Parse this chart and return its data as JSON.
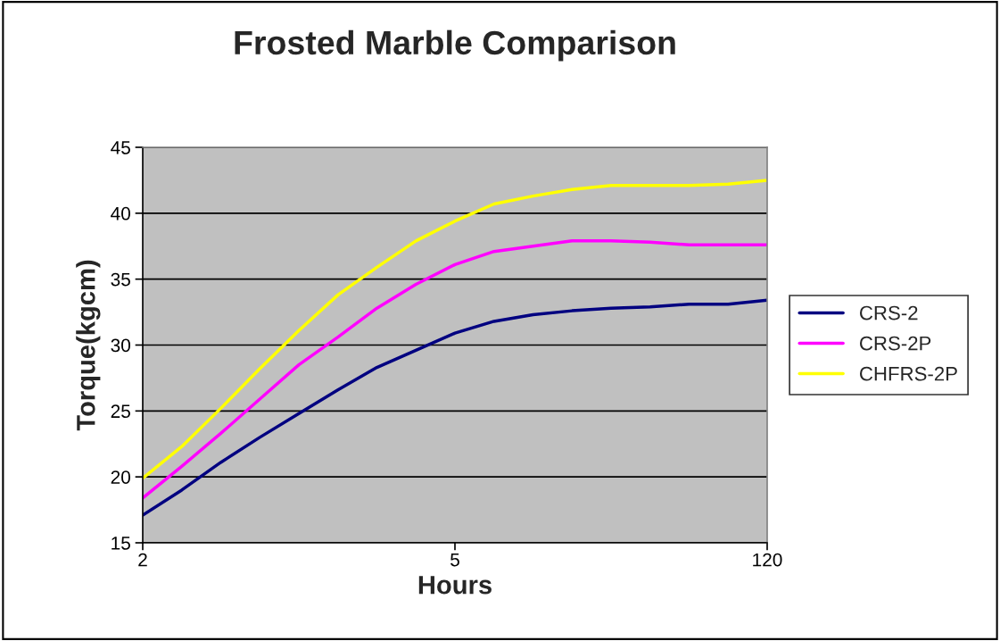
{
  "chart_data": {
    "type": "line",
    "title": "Frosted Marble Comparison",
    "xlabel": "Hours",
    "ylabel": "Torque(kgcm)",
    "categories": [
      "2",
      null,
      null,
      null,
      null,
      null,
      null,
      null,
      "5",
      null,
      null,
      null,
      null,
      null,
      null,
      null,
      "120"
    ],
    "series": [
      {
        "name": "CRS-2",
        "color": "#000080",
        "values": [
          17.1,
          19.0,
          21.1,
          23.0,
          24.8,
          26.6,
          28.3,
          29.6,
          30.9,
          31.8,
          32.3,
          32.6,
          32.8,
          32.9,
          33.1,
          33.1,
          33.4
        ]
      },
      {
        "name": "CRS-2P",
        "color": "#ff00ff",
        "values": [
          18.4,
          20.8,
          23.3,
          25.9,
          28.5,
          30.6,
          32.8,
          34.6,
          36.1,
          37.1,
          37.5,
          37.9,
          37.9,
          37.8,
          37.6,
          37.6,
          37.6
        ]
      },
      {
        "name": "CHFRS-2P",
        "color": "#ffff00",
        "values": [
          19.9,
          22.3,
          25.2,
          28.2,
          31.1,
          33.8,
          35.9,
          37.9,
          39.4,
          40.7,
          41.3,
          41.8,
          42.1,
          42.1,
          42.1,
          42.2,
          42.5
        ]
      }
    ],
    "ylim": [
      15,
      45
    ],
    "yticks": [
      15,
      20,
      25,
      30,
      35,
      40,
      45
    ],
    "grid": "y",
    "legend": "right",
    "marker": "none",
    "line_style": "solid"
  }
}
